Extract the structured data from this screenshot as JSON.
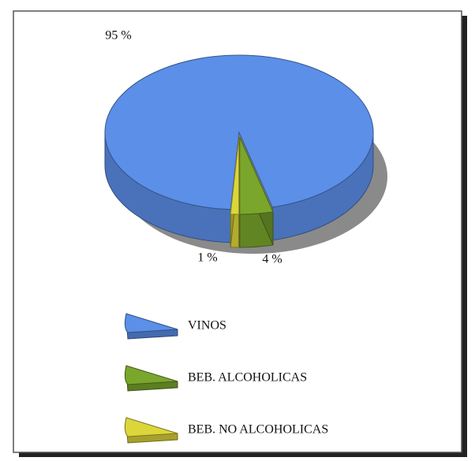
{
  "chart_data": {
    "type": "pie",
    "categories": [
      "VINOS",
      "BEB. ALCOHOLICAS",
      "BEB. NO ALCOHOLICAS"
    ],
    "values": [
      95,
      4,
      1
    ],
    "value_labels": [
      "95 %",
      "4 %",
      "1 %"
    ],
    "colors": [
      "#5b8fe8",
      "#7aa62c",
      "#ddd63a"
    ],
    "legend": "bottom"
  }
}
